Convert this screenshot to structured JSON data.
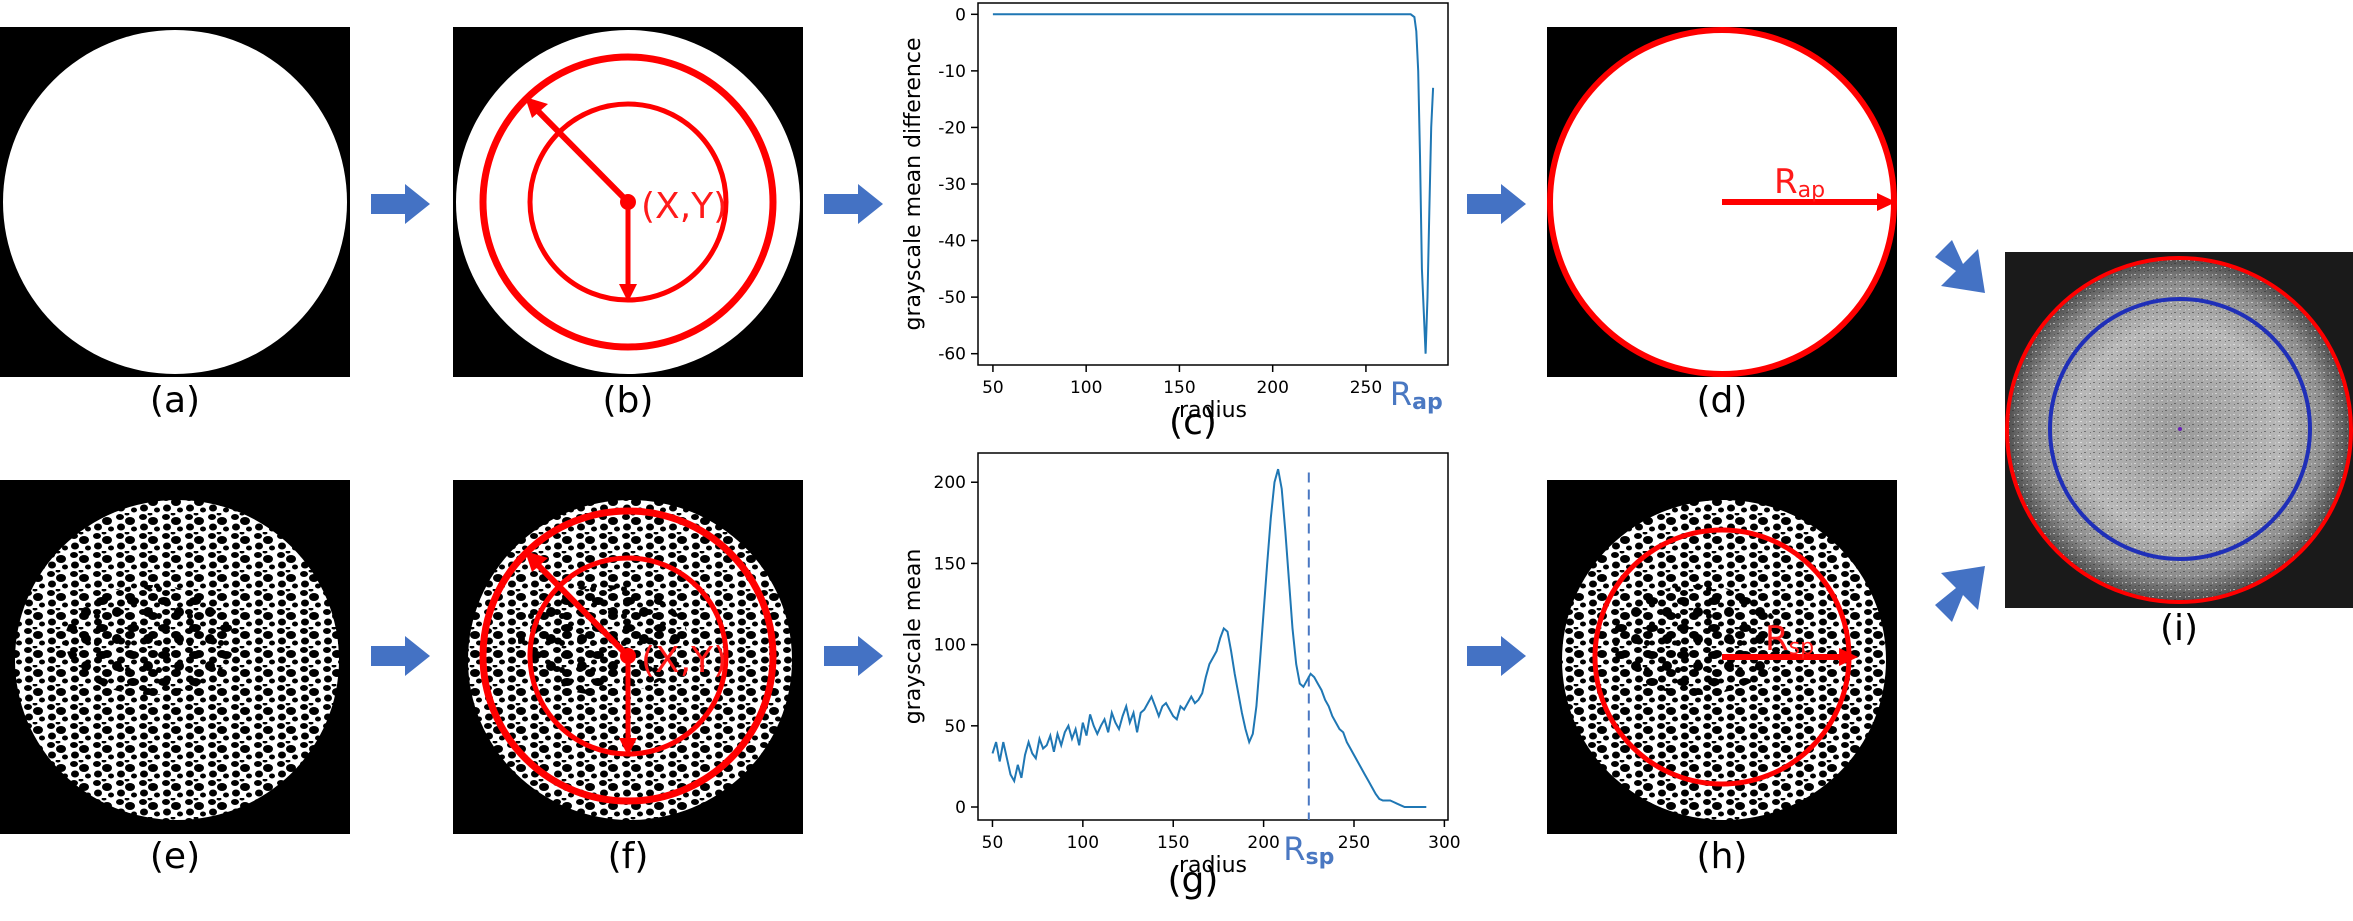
{
  "labels": {
    "a": "(a)",
    "b": "(b)",
    "c": "(c)",
    "d": "(d)",
    "e": "(e)",
    "f": "(f)",
    "g": "(g)",
    "h": "(h)",
    "i": "(i)"
  },
  "annotations": {
    "center_b": "(X,Y)",
    "center_f": "(X,Y)",
    "r_ap_plot": "R",
    "r_ap_plot_sub": "ap",
    "r_ap_panel": "R",
    "r_ap_panel_sub": "ap",
    "r_sp_plot": "R",
    "r_sp_plot_sub": "sp",
    "r_sp_panel": "R",
    "r_sp_panel_sub": "sp"
  },
  "colors": {
    "arrow_blue": "#4472c4",
    "annotation_red": "#ff0000",
    "plot_line": "#1f77b4",
    "ring_blue": "#1f2fb8"
  },
  "chart_data": [
    {
      "type": "line",
      "panel": "c",
      "xlabel": "radius",
      "ylabel": "grayscale mean difference",
      "xlim": [
        42,
        294
      ],
      "ylim": [
        -62,
        2
      ],
      "xticks": [
        50,
        100,
        150,
        200,
        250
      ],
      "yticks": [
        0,
        -10,
        -20,
        -30,
        -40,
        -50,
        -60
      ],
      "x": [
        50,
        100,
        150,
        200,
        250,
        270,
        272,
        274,
        276,
        277,
        278,
        279,
        280,
        282,
        283,
        284,
        285,
        286
      ],
      "y": [
        0,
        0,
        0,
        0,
        0,
        0,
        0,
        0,
        -0.5,
        -3,
        -10,
        -25,
        -45,
        -60,
        -50,
        -35,
        -20,
        -13
      ],
      "marker_label": "R_ap",
      "marker_x": 277
    },
    {
      "type": "line",
      "panel": "g",
      "xlabel": "radius",
      "ylabel": "grayscale mean",
      "xlim": [
        42,
        302
      ],
      "ylim": [
        -8,
        218
      ],
      "xticks": [
        50,
        100,
        150,
        200,
        250,
        300
      ],
      "yticks": [
        0,
        50,
        100,
        150,
        200
      ],
      "x": [
        50,
        52,
        54,
        56,
        58,
        60,
        62,
        64,
        66,
        68,
        70,
        72,
        74,
        76,
        78,
        80,
        82,
        84,
        86,
        88,
        90,
        92,
        94,
        96,
        98,
        100,
        102,
        104,
        106,
        108,
        110,
        112,
        114,
        116,
        118,
        120,
        122,
        124,
        126,
        128,
        130,
        132,
        134,
        136,
        138,
        140,
        142,
        144,
        146,
        148,
        150,
        152,
        154,
        156,
        158,
        160,
        162,
        164,
        166,
        168,
        170,
        172,
        174,
        176,
        178,
        180,
        182,
        184,
        186,
        188,
        190,
        192,
        194,
        196,
        198,
        200,
        202,
        204,
        206,
        208,
        210,
        212,
        214,
        216,
        218,
        220,
        222,
        224,
        226,
        228,
        230,
        232,
        234,
        236,
        238,
        240,
        242,
        244,
        246,
        248,
        250,
        252,
        254,
        256,
        258,
        260,
        262,
        264,
        266,
        268,
        270,
        272,
        274,
        276,
        278,
        280,
        282,
        284,
        286,
        288,
        290
      ],
      "y": [
        33,
        40,
        28,
        40,
        30,
        20,
        16,
        26,
        18,
        32,
        40,
        33,
        30,
        42,
        36,
        38,
        44,
        34,
        45,
        38,
        46,
        50,
        42,
        48,
        38,
        52,
        44,
        57,
        50,
        45,
        50,
        54,
        46,
        58,
        52,
        48,
        56,
        62,
        52,
        58,
        46,
        58,
        60,
        64,
        68,
        62,
        56,
        62,
        64,
        60,
        56,
        54,
        62,
        60,
        64,
        68,
        64,
        66,
        70,
        80,
        88,
        92,
        96,
        104,
        110,
        108,
        96,
        82,
        70,
        58,
        48,
        40,
        45,
        62,
        90,
        120,
        150,
        178,
        200,
        208,
        196,
        170,
        140,
        110,
        88,
        76,
        74,
        78,
        82,
        80,
        76,
        72,
        66,
        62,
        56,
        52,
        48,
        46,
        40,
        36,
        32,
        28,
        24,
        20,
        16,
        12,
        8,
        5,
        4,
        4,
        4,
        3,
        2,
        1,
        0,
        0,
        0,
        0,
        0,
        0,
        0
      ],
      "marker_label": "R_sp",
      "marker_x": 225
    }
  ]
}
